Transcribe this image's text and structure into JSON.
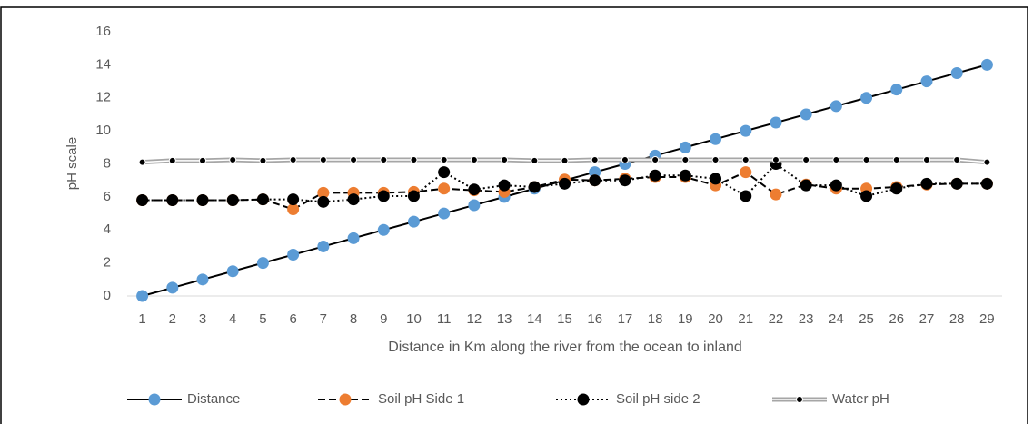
{
  "chart_data": {
    "type": "line",
    "y_label": "pH scale",
    "x_label": "Distance in Km along the river from the ocean to inland",
    "categories": [
      1,
      2,
      3,
      4,
      5,
      6,
      7,
      8,
      9,
      10,
      11,
      12,
      13,
      14,
      15,
      16,
      17,
      18,
      19,
      20,
      21,
      22,
      23,
      24,
      25,
      26,
      27,
      28,
      29
    ],
    "ylim": [
      0,
      16
    ],
    "yticks": [
      0,
      2,
      4,
      6,
      8,
      10,
      12,
      14,
      16
    ],
    "grid": false,
    "legend": "bottom",
    "series": [
      {
        "name": "Distance",
        "color": "#5b9bd5",
        "line_color": "#000000",
        "line_style": "solid",
        "values": [
          0,
          0.5,
          1,
          1.5,
          2,
          2.5,
          3,
          3.5,
          4,
          4.5,
          5,
          5.5,
          6,
          6.5,
          7,
          7.5,
          8,
          8.5,
          9,
          9.5,
          10,
          10.5,
          11,
          11.5,
          12,
          12.5,
          13,
          13.5,
          14
        ]
      },
      {
        "name": "Soil pH Side 1",
        "color": "#ed7d31",
        "line_color": "#000000",
        "line_style": "dashed",
        "values": [
          5.8,
          5.8,
          5.8,
          5.8,
          5.85,
          5.25,
          6.25,
          6.25,
          6.25,
          6.3,
          6.5,
          6.4,
          6.3,
          6.6,
          7.05,
          7.0,
          7.1,
          7.2,
          7.2,
          6.7,
          7.5,
          6.15,
          6.75,
          6.5,
          6.5,
          6.6,
          6.75,
          6.8,
          6.8
        ]
      },
      {
        "name": "Soil pH side 2",
        "color": "#000000",
        "line_color": "#000000",
        "line_style": "dotted",
        "values": [
          5.8,
          5.8,
          5.8,
          5.8,
          5.85,
          5.85,
          5.7,
          5.85,
          6.05,
          6.05,
          7.5,
          6.45,
          6.7,
          6.6,
          6.8,
          7.0,
          7.0,
          7.3,
          7.3,
          7.1,
          6.05,
          8.0,
          6.7,
          6.7,
          6.05,
          6.5,
          6.8,
          6.8,
          6.8
        ]
      },
      {
        "name": "Water  pH",
        "color": "#000000",
        "line_color": "#a6a6a6",
        "line_style": "double",
        "values": [
          8.1,
          8.2,
          8.2,
          8.25,
          8.2,
          8.25,
          8.25,
          8.25,
          8.25,
          8.25,
          8.25,
          8.25,
          8.25,
          8.2,
          8.2,
          8.25,
          8.25,
          8.25,
          8.25,
          8.25,
          8.25,
          8.25,
          8.25,
          8.25,
          8.25,
          8.25,
          8.25,
          8.25,
          8.1
        ]
      }
    ]
  }
}
